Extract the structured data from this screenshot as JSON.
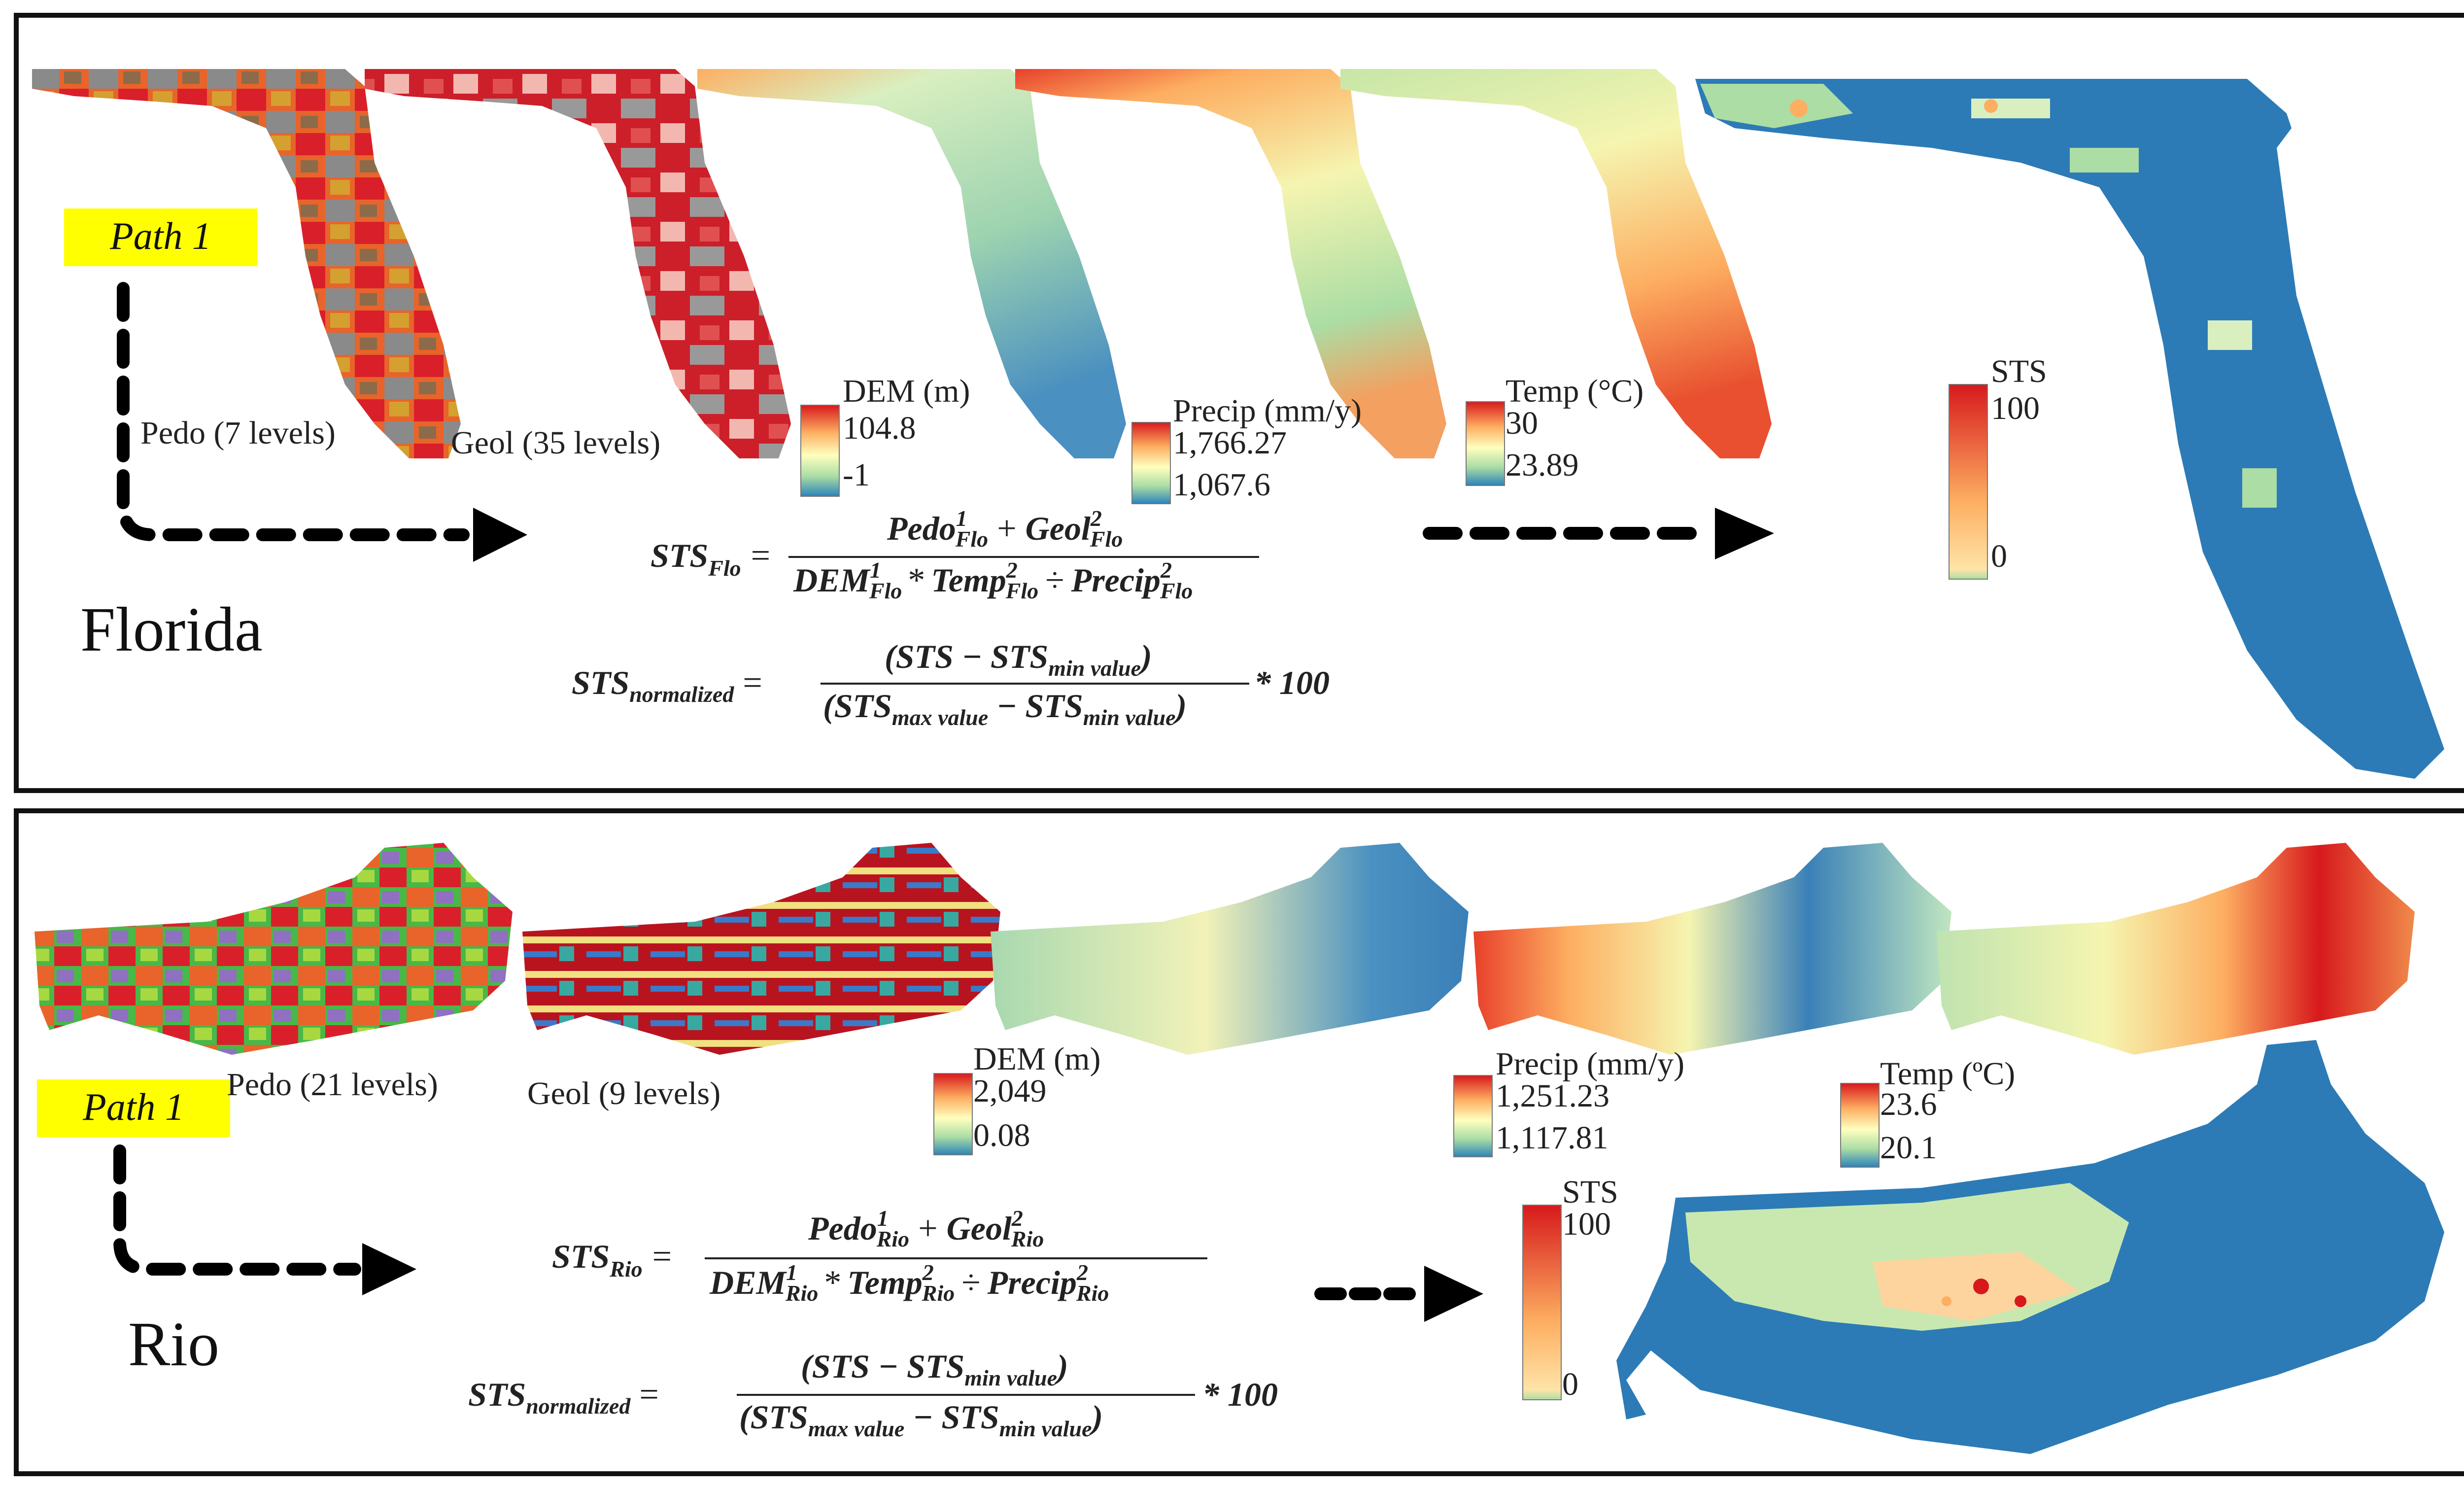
{
  "panels": {
    "florida": {
      "region": "Florida",
      "path_label": "Path 1",
      "pedo_label": "Pedo (7 levels)",
      "geol_label": "Geol (35 levels)",
      "legends": {
        "dem": {
          "title": "DEM (m)",
          "max": "104.8",
          "min": "-1"
        },
        "precip": {
          "title": "Precip (mm/y)",
          "max": "1,766.27",
          "min": "1,067.6"
        },
        "temp": {
          "title": "Temp (°C)",
          "max": "30",
          "min": "23.89"
        },
        "sts": {
          "title": "STS",
          "max": "100",
          "min": "0"
        }
      },
      "equation": {
        "lhs": "STS",
        "lhs_sub": "Flo",
        "num_a": "Pedo",
        "num_a_sup": "1",
        "num_a_sub": "Flo",
        "num_op": "+",
        "num_b": "Geol",
        "num_b_sup": "2",
        "num_b_sub": "Flo",
        "den_a": "DEM",
        "den_a_sup": "1",
        "den_a_sub": "Flo",
        "den_op1": "*",
        "den_b": "Temp",
        "den_b_sup": "2",
        "den_b_sub": "Flo",
        "den_op2": "÷",
        "den_c": "Precip",
        "den_c_sup": "2",
        "den_c_sub": "Flo"
      }
    },
    "rio": {
      "region": "Rio",
      "path_label": "Path 1",
      "pedo_label": "Pedo (21 levels)",
      "geol_label": "Geol (9 levels)",
      "legends": {
        "dem": {
          "title": "DEM (m)",
          "max": "2,049",
          "min": "0.08"
        },
        "precip": {
          "title": "Precip (mm/y)",
          "max": "1,251.23",
          "min": "1,117.81"
        },
        "temp": {
          "title": "Temp (ºC)",
          "max": "23.6",
          "min": "20.1"
        },
        "sts": {
          "title": "STS",
          "max": "100",
          "min": "0"
        }
      },
      "equation": {
        "lhs": "STS",
        "lhs_sub": "Rio",
        "num_a": "Pedo",
        "num_a_sup": "1",
        "num_a_sub": "Rio",
        "num_op": "+",
        "num_b": "Geol",
        "num_b_sup": "2",
        "num_b_sub": "Rio",
        "den_a": "DEM",
        "den_a_sup": "1",
        "den_a_sub": "Rio",
        "den_op1": "*",
        "den_b": "Temp",
        "den_b_sup": "2",
        "den_b_sub": "Rio",
        "den_op2": "÷",
        "den_c": "Precip",
        "den_c_sup": "2",
        "den_c_sub": "Rio"
      }
    }
  },
  "normalization": {
    "lhs": "STS",
    "lhs_sub": "normalized",
    "num": "(STS − STS",
    "num_sub": "min value",
    "num_close": ")",
    "den_open": "(STS",
    "den_sub1": "max value",
    "den_mid": " − STS",
    "den_sub2": "min value",
    "den_close": ")",
    "times": "* 100"
  },
  "colors": {
    "border": "#111111",
    "path_bg": "#ffff00",
    "sts_blue": "#2c7bb6",
    "ramp_red": "#d7191c",
    "ramp_orange": "#fdae61",
    "ramp_yellow": "#ffffbf",
    "ramp_green": "#abdda4",
    "ramp_blue": "#2b83ba"
  }
}
